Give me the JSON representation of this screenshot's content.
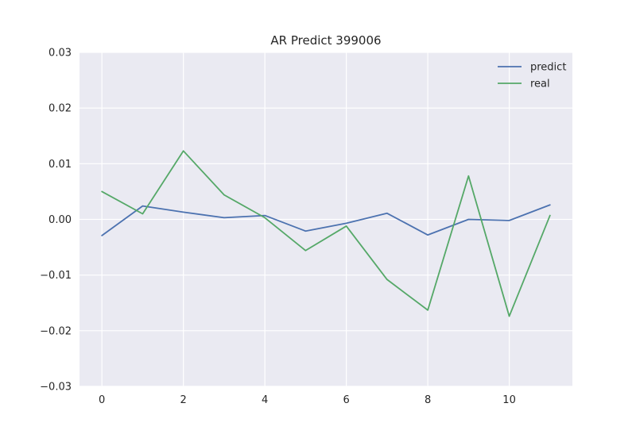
{
  "chart_data": {
    "type": "line",
    "title": "AR Predict 399006",
    "xlabel": "",
    "ylabel": "",
    "x": [
      0,
      1,
      2,
      3,
      4,
      5,
      6,
      7,
      8,
      9,
      10,
      11
    ],
    "xticks": [
      0,
      2,
      4,
      6,
      8,
      10
    ],
    "xlim": [
      -0.55,
      11.55
    ],
    "ylim": [
      -0.03,
      0.03
    ],
    "yticks": [
      -0.03,
      -0.02,
      -0.01,
      0.0,
      0.01,
      0.02,
      0.03
    ],
    "ytick_labels": [
      "−0.03",
      "−0.02",
      "−0.01",
      "0.00",
      "0.01",
      "0.02",
      "0.03"
    ],
    "grid": true,
    "legend_position": "top-right",
    "background": "#EAEAF2",
    "series": [
      {
        "name": "predict",
        "color": "#4C72B0",
        "values": [
          -0.0029,
          0.0024,
          0.0013,
          0.0003,
          0.0007,
          -0.0021,
          -0.0007,
          0.0011,
          -0.0028,
          0.0,
          -0.0002,
          0.0026
        ]
      },
      {
        "name": "real",
        "color": "#55A868",
        "values": [
          0.005,
          0.001,
          0.0123,
          0.0044,
          0.0003,
          -0.0056,
          -0.0012,
          -0.0108,
          -0.0163,
          0.0078,
          -0.0174,
          0.0007
        ]
      }
    ]
  }
}
